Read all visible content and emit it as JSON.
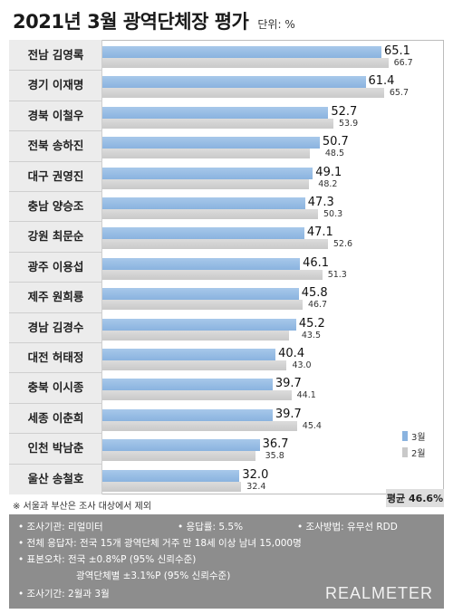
{
  "header": {
    "title": "2021년 3월 광역단체장 평가",
    "unit": "단위: %"
  },
  "chart_data": {
    "type": "bar",
    "orientation": "horizontal",
    "title": "2021년 3월 광역단체장 평가",
    "unit": "단위: %",
    "categories": [
      "전남 김영록",
      "경기 이재명",
      "경북 이철우",
      "전북 송하진",
      "대구 권영진",
      "충남 양승조",
      "강원 최문순",
      "광주 이용섭",
      "제주 원희룡",
      "경남 김경수",
      "대전 허태정",
      "충북 이시종",
      "세종 이춘희",
      "인천 박남춘",
      "울산 송철호"
    ],
    "series": [
      {
        "name": "3월",
        "color": "#8ab3df",
        "values": [
          65.1,
          61.4,
          52.7,
          50.7,
          49.1,
          47.3,
          47.1,
          46.1,
          45.8,
          45.2,
          40.4,
          39.7,
          39.7,
          36.7,
          32.0
        ]
      },
      {
        "name": "2월",
        "color": "#c9c9c9",
        "values": [
          66.7,
          65.7,
          53.9,
          48.5,
          48.2,
          50.3,
          52.6,
          51.3,
          46.7,
          43.5,
          43.0,
          44.1,
          45.4,
          35.8,
          32.4
        ]
      }
    ],
    "value_labels_3": [
      "65.1",
      "61.4",
      "52.7",
      "50.7",
      "49.1",
      "47.3",
      "47.1",
      "46.1",
      "45.8",
      "45.2",
      "40.4",
      "39.7",
      "39.7",
      "36.7",
      "32.0"
    ],
    "value_labels_2": [
      "66.7",
      "65.7",
      "53.9",
      "48.5",
      "48.2",
      "50.3",
      "52.6",
      "51.3",
      "46.7",
      "43.5",
      "43.0",
      "44.1",
      "45.4",
      "35.8",
      "32.4"
    ],
    "xlim": [
      0,
      67
    ],
    "legend_position": "bottom-right",
    "grid": false
  },
  "legend": {
    "march": "3월",
    "february": "2월"
  },
  "average": "평균 46.6%",
  "footnote": "※ 서울과 부산은 조사 대상에서 제외",
  "info": {
    "agency": "• 조사기관: 리얼미터",
    "response_rate": "• 응답률: 5.5%",
    "method": "• 조사방법: 유무선 RDD",
    "respondents": "• 전체 응답자: 전국 15개 광역단체 거주 만 18세 이상 남녀 15,000명",
    "error_national": "• 표본오차: 전국 ±0.8%P (95% 신뢰수준)",
    "error_regional": "광역단체별 ±3.1%P (95% 신뢰수준)",
    "period": "• 조사기간: 2월과 3월"
  },
  "brand": "REALMETER"
}
